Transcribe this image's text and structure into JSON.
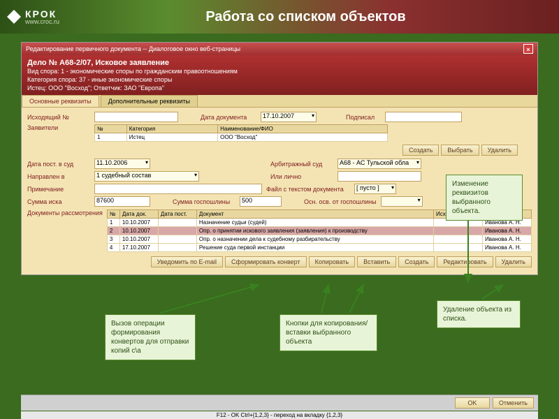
{
  "header": {
    "brand": "КРОК",
    "url": "www.croc.ru",
    "title": "Работа со списком объектов"
  },
  "window": {
    "title": "Редактирование первичного документа -- Диалоговое окно веб-страницы",
    "close": "×"
  },
  "case": {
    "title": "Дело № А68-2/07, Исковое заявление",
    "line1": "Вид спора: 1 - экономические споры по гражданским правоотношениям",
    "line2": "Категория спора: 37 - иные экономические споры",
    "line3": "Истец: ООО \"Восход\"; Ответчик: ЗАО \"Европа\""
  },
  "tabs": {
    "t1": "Основные реквизиты",
    "t2": "Дополнительные реквизиты"
  },
  "form": {
    "outgoing_label": "Исходящий №",
    "outgoing_value": "",
    "docdate_label": "Дата документа",
    "docdate_value": "17.10.2007",
    "signed_label": "Подписал",
    "signed_value": "",
    "applicants_label": "Заявители",
    "table1": {
      "h1": "№",
      "h2": "Категория",
      "h3": "Наименование/ФИО",
      "r1c1": "1",
      "r1c2": "Истец",
      "r1c3": "ООО \"Восход\""
    },
    "date_court_label": "Дата пост. в суд",
    "date_court_value": "11.10.2006",
    "arb_label": "Арбитражный суд",
    "arb_value": "А68 - АС Тульской обла",
    "directed_label": "Направлен в",
    "directed_value": "1 судебный состав",
    "or_person_label": "Или лично",
    "note_label": "Примечание",
    "note_value": "",
    "file_label": "Файл с текстом документа",
    "file_value": "[ пусто ]",
    "sum_label": "Сумма иска",
    "sum_value": "87600",
    "fee_label": "Сумма госпошлины",
    "fee_value": "500",
    "exempt_label": "Осн. осв. от госпошлины",
    "docs_label": "Документы рассмотрения"
  },
  "btns1": {
    "create": "Создать",
    "select": "Выбрать",
    "delete": "Удалить"
  },
  "docs_table": {
    "h1": "№",
    "h2": "Дата док.",
    "h3": "Дата пост.",
    "h4": "Документ",
    "h5": "Исходящий №",
    "h6": "",
    "rows": [
      {
        "n": "1",
        "d1": "10.10.2007",
        "d2": "",
        "doc": "Назначение судьи (судей)",
        "out": "",
        "who": "Иванова А. Н."
      },
      {
        "n": "2",
        "d1": "10.10.2007",
        "d2": "",
        "doc": "Опр. о принятии искового заявления (заявления) к производству",
        "out": "",
        "who": "Иванова А. Н."
      },
      {
        "n": "3",
        "d1": "10.10.2007",
        "d2": "",
        "doc": "Опр. о назначении дела к судебному разбирательству",
        "out": "",
        "who": "Иванова А. Н."
      },
      {
        "n": "4",
        "d1": "17.10.2007",
        "d2": "",
        "doc": "Решение суда первой инстанции",
        "out": "",
        "who": "Иванова А. Н."
      }
    ]
  },
  "btns2": {
    "email": "Уведомить по E-mail",
    "envelope": "Сформировать конверт",
    "copy": "Копировать",
    "paste": "Вставить",
    "create": "Создать",
    "edit": "Редактировать",
    "delete": "Удалить"
  },
  "footer": {
    "ok": "OK",
    "cancel": "Отменить",
    "status": "F12 - OK   Ctrl+{1,2,3} - переход на вкладку {1,2,3}"
  },
  "annotations": {
    "a1": "Изменение реквизитов выбранного объекта.",
    "a2": "Вызов операции формирования конвертов для отправки копий с\\а",
    "a3": "Кнопки для копирования/вставки выбранного объекта",
    "a4": "Удаление объекта из списка."
  },
  "colors": {
    "arrow": "#3a8020"
  }
}
